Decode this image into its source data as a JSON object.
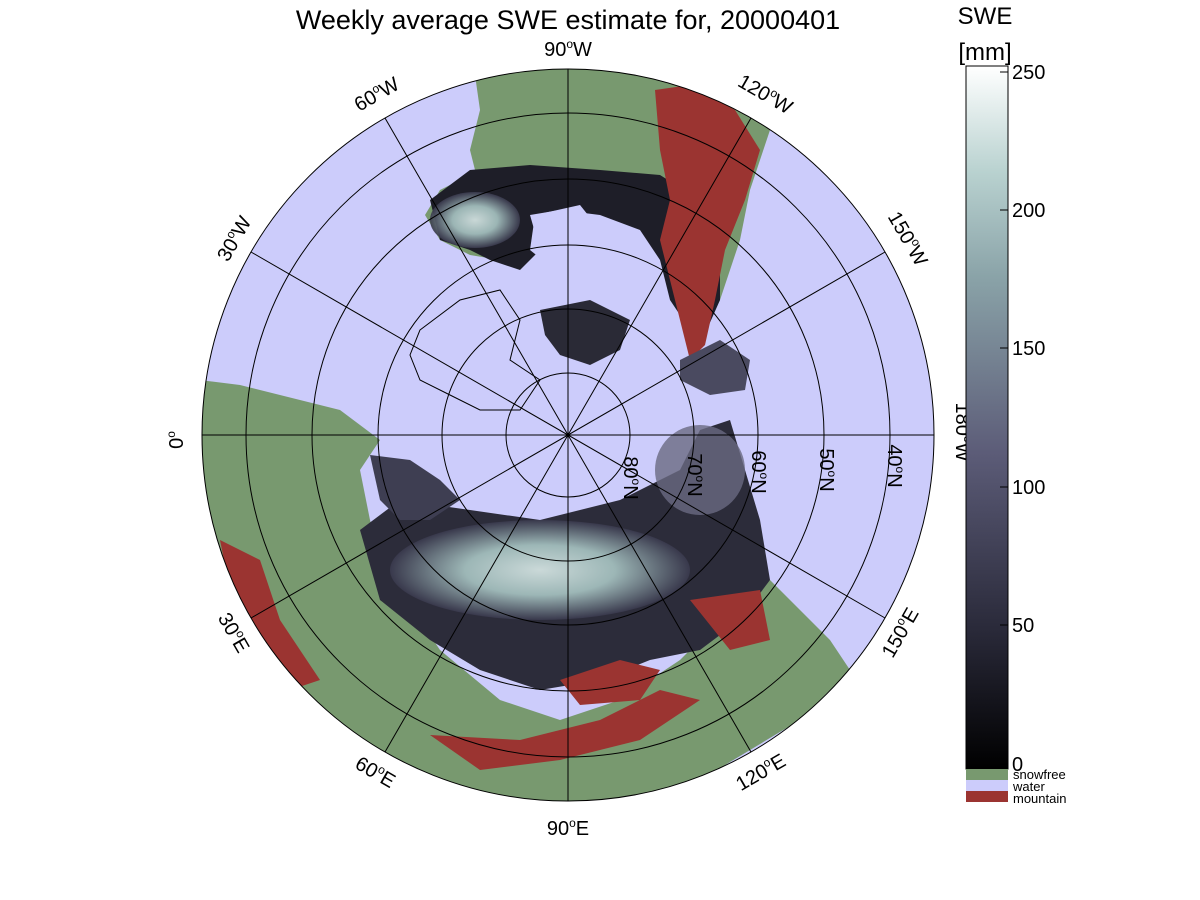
{
  "title": "Weekly average SWE estimate for, 20000401",
  "longitude_labels": [
    {
      "deg": "90",
      "hemi": "W"
    },
    {
      "deg": "60",
      "hemi": "W"
    },
    {
      "deg": "30",
      "hemi": "W"
    },
    {
      "deg": "0",
      "hemi": ""
    },
    {
      "deg": "120",
      "hemi": "W"
    },
    {
      "deg": "150",
      "hemi": "W"
    },
    {
      "deg": "180",
      "hemi": "W"
    },
    {
      "deg": "30",
      "hemi": "E"
    },
    {
      "deg": "60",
      "hemi": "E"
    },
    {
      "deg": "90",
      "hemi": "E"
    },
    {
      "deg": "120",
      "hemi": "E"
    },
    {
      "deg": "150",
      "hemi": "E"
    }
  ],
  "latitude_labels": [
    {
      "deg": "80",
      "hemi": "N"
    },
    {
      "deg": "70",
      "hemi": "N"
    },
    {
      "deg": "60",
      "hemi": "N"
    },
    {
      "deg": "50",
      "hemi": "N"
    },
    {
      "deg": "40",
      "hemi": "N"
    }
  ],
  "colorbar": {
    "label_line1": "SWE",
    "label_line2": "[mm]",
    "ticks": [
      "250",
      "200",
      "150",
      "100",
      "50",
      "0"
    ],
    "categories": [
      {
        "label": "snowfree",
        "color": "#78996f"
      },
      {
        "label": "water",
        "color": "#ccccfb"
      },
      {
        "label": "mountain",
        "color": "#9b3431"
      }
    ]
  },
  "colors": {
    "water": "#ccccfb",
    "snowfree": "#78996f",
    "mountain": "#9b3431",
    "swe_low": "#0a0a10",
    "swe_mid": "#4c4c68",
    "swe_high": "#9dbfbf",
    "swe_max": "#ffffff"
  }
}
